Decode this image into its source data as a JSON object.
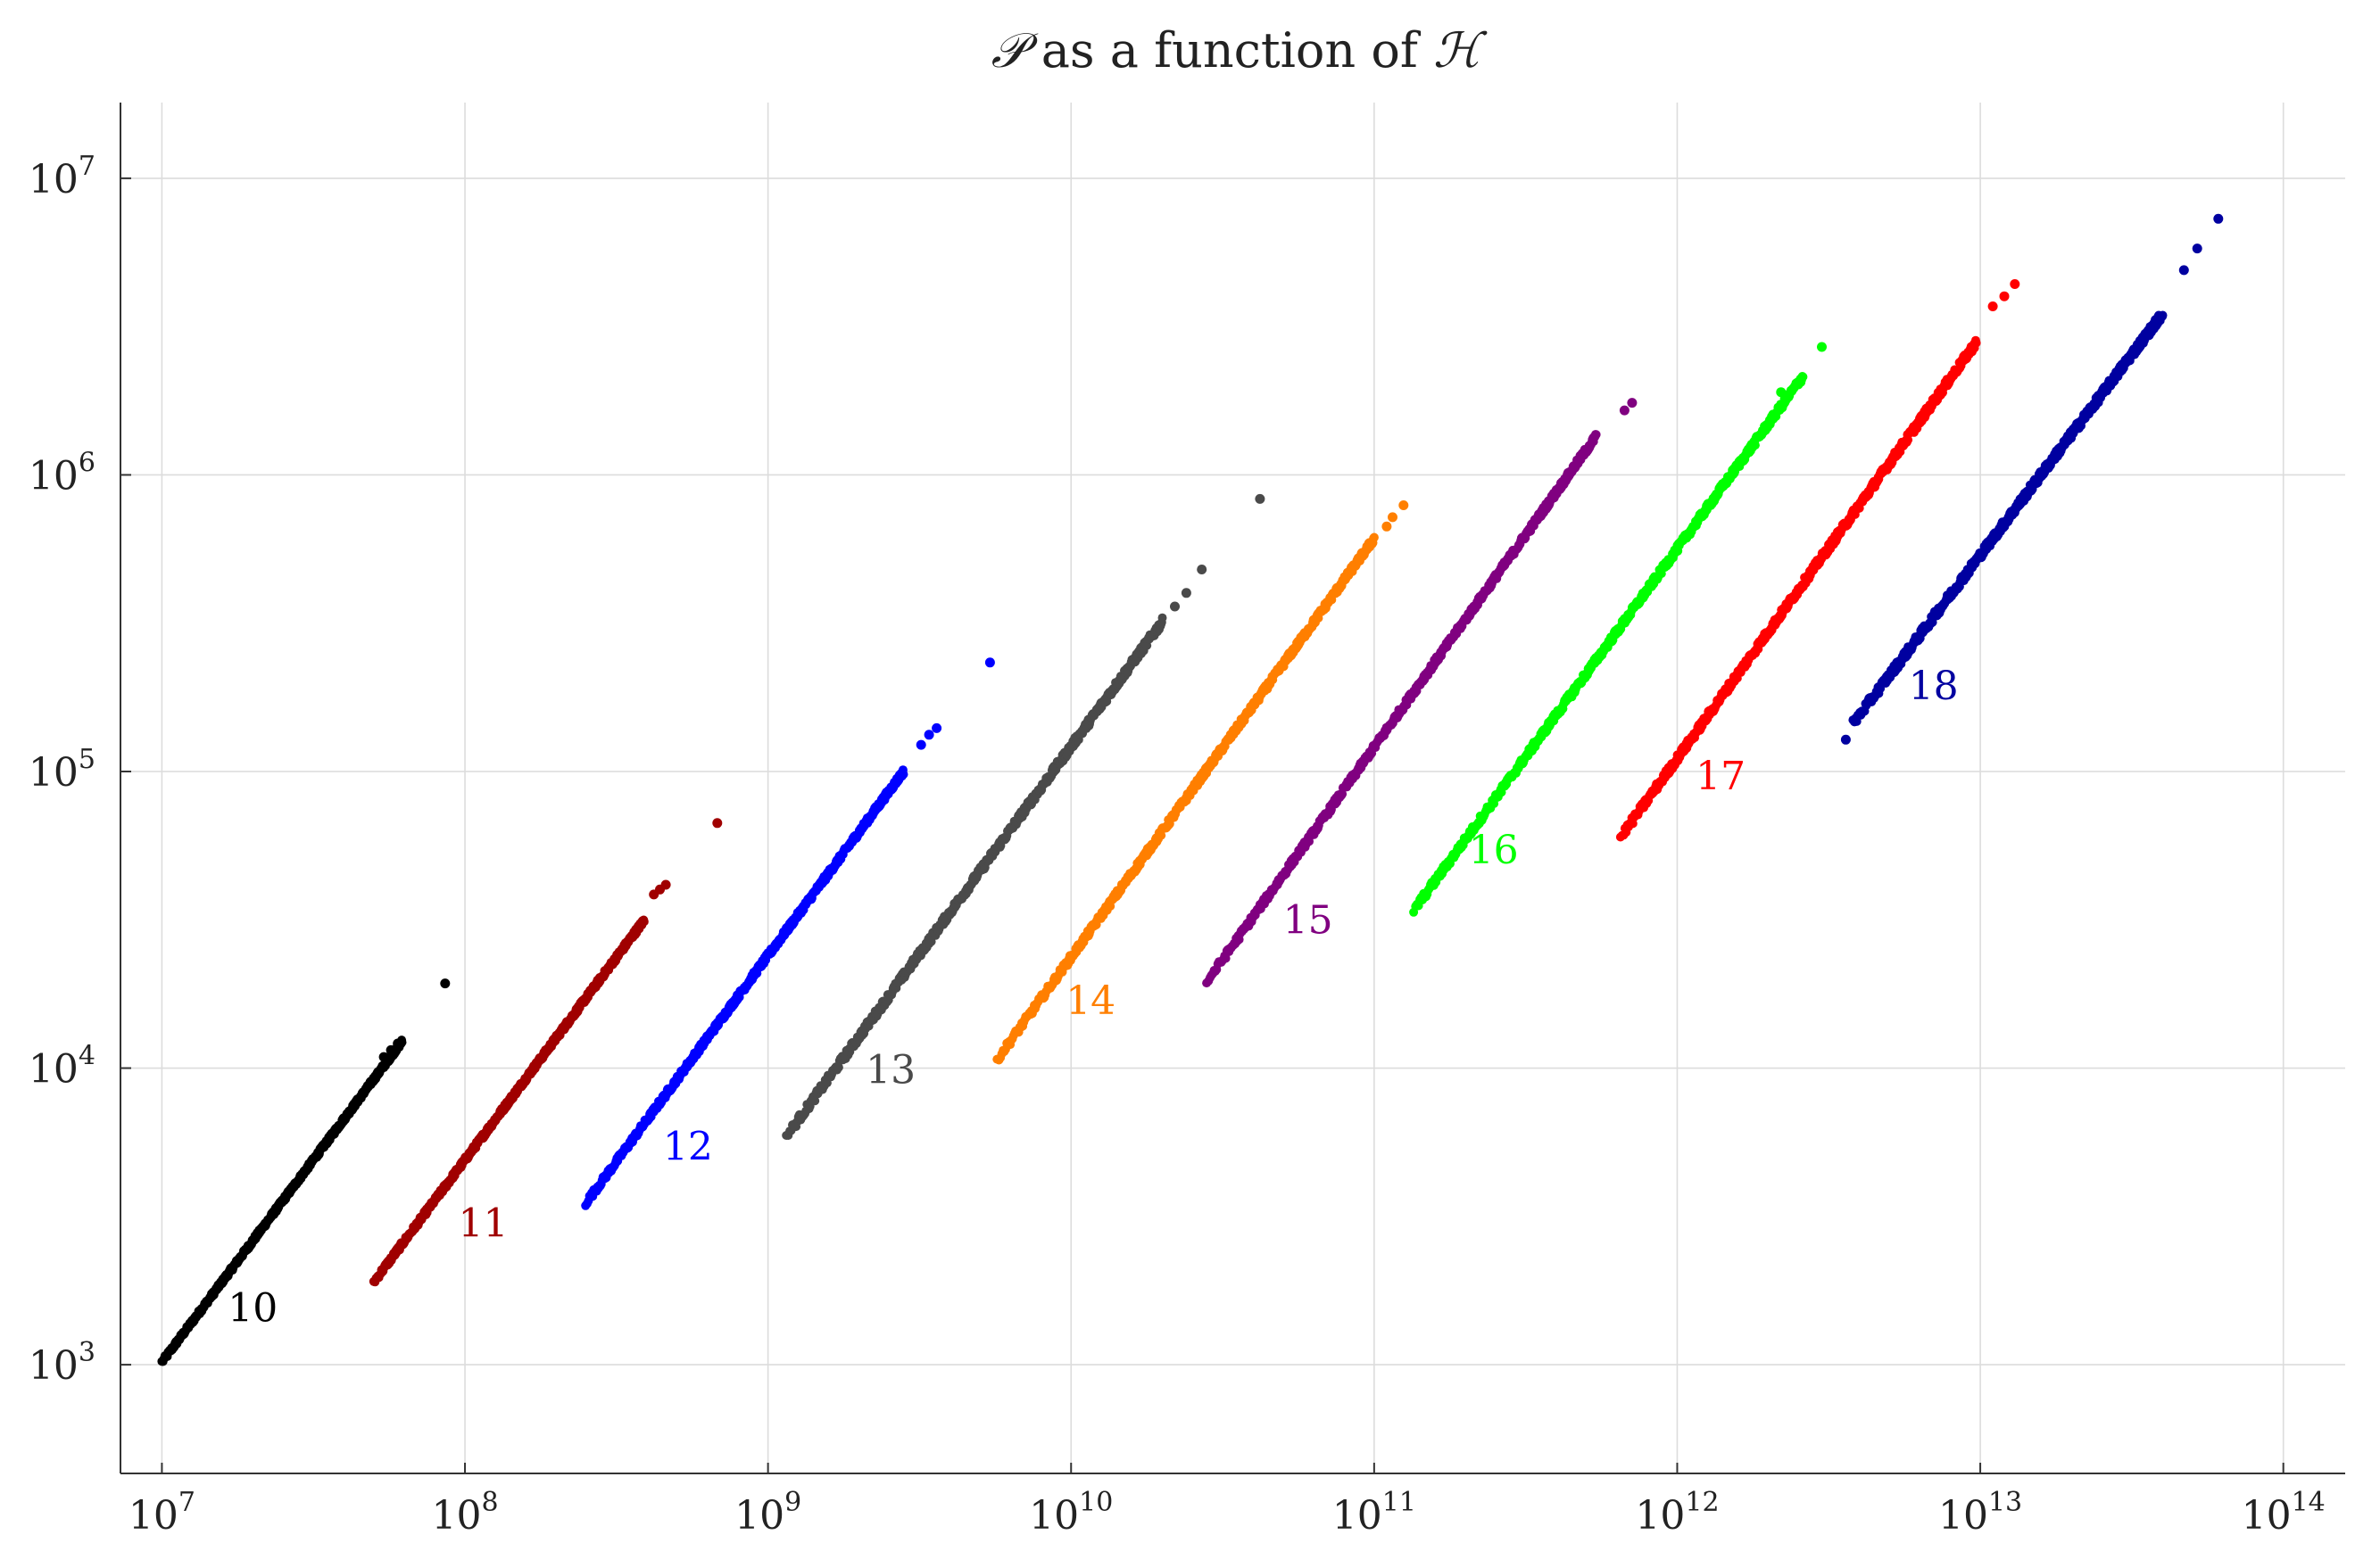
{
  "chart_data": {
    "type": "scatter",
    "title": {
      "script_p": "𝒫",
      "middle": " as a function of ",
      "script_h": "ℋ"
    },
    "xlabel": "",
    "ylabel": "",
    "x_scale": "log",
    "y_scale": "log",
    "xlim": [
      7300000,
      160000000000000
    ],
    "ylim": [
      430,
      18000000
    ],
    "grid": true,
    "x_ticks": [
      {
        "value": 10000000,
        "base": "10",
        "exp": "7"
      },
      {
        "value": 100000000,
        "base": "10",
        "exp": "8"
      },
      {
        "value": 1000000000,
        "base": "10",
        "exp": "9"
      },
      {
        "value": 10000000000,
        "base": "10",
        "exp": "10"
      },
      {
        "value": 100000000000,
        "base": "10",
        "exp": "11"
      },
      {
        "value": 1000000000000,
        "base": "10",
        "exp": "12"
      },
      {
        "value": 10000000000000,
        "base": "10",
        "exp": "13"
      },
      {
        "value": 100000000000000,
        "base": "10",
        "exp": "14"
      }
    ],
    "y_ticks": [
      {
        "value": 1000,
        "base": "10",
        "exp": "3"
      },
      {
        "value": 10000,
        "base": "10",
        "exp": "4"
      },
      {
        "value": 100000,
        "base": "10",
        "exp": "5"
      },
      {
        "value": 1000000,
        "base": "10",
        "exp": "6"
      },
      {
        "value": 10000000,
        "base": "10",
        "exp": "7"
      }
    ],
    "series": [
      {
        "name": "10",
        "color": "#000000",
        "label_at": [
          16500000,
          1400
        ],
        "main": {
          "x_start": 10000000,
          "y_start": 1020,
          "x_end": 62000000,
          "y_end": 12300,
          "spread": 0.008
        },
        "outliers": [
          [
            86000000,
            19300
          ],
          [
            60000000,
            12100
          ],
          [
            57000000,
            11500
          ],
          [
            54000000,
            10900
          ]
        ]
      },
      {
        "name": "11",
        "color": "#a00000",
        "label_at": [
          95000000,
          2700
        ],
        "main": {
          "x_start": 50000000,
          "y_start": 1900,
          "x_end": 390000000,
          "y_end": 31500,
          "spread": 0.009
        },
        "outliers": [
          [
            680000000,
            67000
          ],
          [
            460000000,
            41500
          ],
          [
            420000000,
            38500
          ],
          [
            440000000,
            40000
          ]
        ]
      },
      {
        "name": "12",
        "color": "#0000ff",
        "label_at": [
          450000000,
          4900
        ],
        "main": {
          "x_start": 250000000,
          "y_start": 3500,
          "x_end": 2800000000,
          "y_end": 100000,
          "spread": 0.01
        },
        "outliers": [
          [
            5400000000,
            233000
          ],
          [
            3600000000,
            140000
          ],
          [
            3200000000,
            123000
          ],
          [
            3400000000,
            133000
          ]
        ]
      },
      {
        "name": "13",
        "color": "#4a4a4a",
        "label_at": [
          2100000000,
          8900
        ],
        "main": {
          "x_start": 1150000000,
          "y_start": 5900,
          "x_end": 20000000000,
          "y_end": 320000,
          "spread": 0.013
        },
        "outliers": [
          [
            42000000000,
            830000
          ],
          [
            27000000000,
            480000
          ],
          [
            24000000000,
            400000
          ],
          [
            22000000000,
            360000
          ]
        ]
      },
      {
        "name": "14",
        "color": "#ff7f00",
        "label_at": [
          9600000000,
          15200
        ],
        "main": {
          "x_start": 5700000000,
          "y_start": 10700,
          "x_end": 100000000000,
          "y_end": 610000,
          "spread": 0.011
        },
        "outliers": [
          [
            125000000000,
            790000
          ],
          [
            115000000000,
            720000
          ],
          [
            110000000000,
            670000
          ]
        ]
      },
      {
        "name": "15",
        "color": "#800080",
        "label_at": [
          50000000000,
          28500
        ],
        "main": {
          "x_start": 28000000000,
          "y_start": 19500,
          "x_end": 540000000000,
          "y_end": 1350000,
          "spread": 0.011
        },
        "outliers": [
          [
            710000000000,
            1750000
          ],
          [
            670000000000,
            1650000
          ]
        ]
      },
      {
        "name": "16",
        "color": "#00ff00",
        "label_at": [
          205000000000,
          49000
        ],
        "main": {
          "x_start": 135000000000,
          "y_start": 34000,
          "x_end": 2600000000000,
          "y_end": 2150000,
          "spread": 0.012
        },
        "outliers": [
          [
            3000000000000,
            2700000
          ],
          [
            2200000000000,
            1900000
          ]
        ]
      },
      {
        "name": "17",
        "color": "#ff0000",
        "label_at": [
          1150000000000,
          87000
        ],
        "main": {
          "x_start": 650000000000,
          "y_start": 60000,
          "x_end": 9700000000000,
          "y_end": 2800000,
          "spread": 0.013
        },
        "outliers": [
          [
            13000000000000,
            4400000
          ],
          [
            12000000000000,
            4000000
          ],
          [
            11000000000000,
            3700000
          ]
        ]
      },
      {
        "name": "18",
        "color": "#0000a0",
        "label_at": [
          5800000000000,
          175000
        ],
        "main": {
          "x_start": 3800000000000,
          "y_start": 145000,
          "x_end": 40000000000000,
          "y_end": 3500000,
          "spread": 0.014
        },
        "outliers": [
          [
            61000000000000,
            7300000
          ],
          [
            3600000000000,
            128000
          ],
          [
            52000000000000,
            5800000
          ],
          [
            47000000000000,
            4900000
          ]
        ]
      }
    ]
  }
}
